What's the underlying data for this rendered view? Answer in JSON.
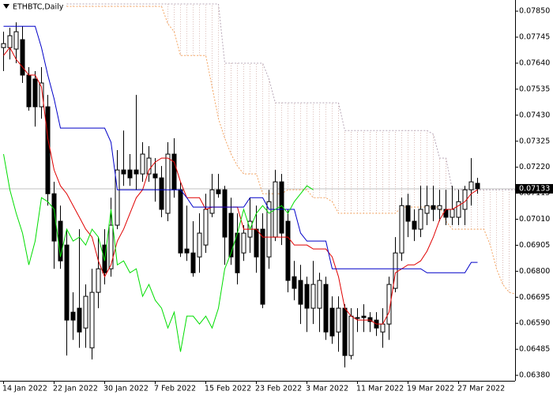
{
  "chart_data": {
    "type": "candlestick",
    "title": "ETHBTC,Daily",
    "categories": [
      "14 Jan 2022",
      null,
      null,
      null,
      null,
      null,
      null,
      null,
      "22 Jan 2022",
      null,
      null,
      null,
      null,
      null,
      null,
      null,
      "30 Jan 2022",
      null,
      null,
      null,
      null,
      null,
      null,
      null,
      "7 Feb 2022",
      null,
      null,
      null,
      null,
      null,
      null,
      null,
      "15 Feb 2022",
      null,
      null,
      null,
      null,
      null,
      null,
      null,
      "23 Feb 2022",
      null,
      null,
      null,
      null,
      null,
      null,
      null,
      "3 Mar 2022",
      null,
      null,
      null,
      null,
      null,
      null,
      null,
      "11 Mar 2022",
      null,
      null,
      null,
      null,
      null,
      null,
      null,
      "19 Mar 2022",
      null,
      null,
      null,
      null,
      null,
      null,
      null,
      "27 Mar 2022",
      null,
      null,
      null,
      null,
      null,
      null,
      null,
      null,
      null
    ],
    "open": [
      0.07703,
      0.07703,
      0.07697,
      0.07735,
      0.07592,
      0.07576,
      0.07464,
      0.07464,
      0.07113,
      0.07002,
      0.06906,
      0.06635,
      0.06651,
      0.06571,
      0.06491,
      0.06715,
      0.06906,
      0.0681,
      0.06986,
      0.07209,
      0.07209,
      0.07209,
      0.07193,
      0.07193,
      0.07193,
      0.07177,
      0.07034,
      0.07273,
      0.07129,
      0.0689,
      0.06874,
      0.06858,
      0.06906,
      0.07034,
      0.07129,
      0.07129,
      0.07034,
      0.06954,
      0.06874,
      0.06938,
      0.0697,
      0.0697,
      0.06858,
      0.06938,
      0.07161,
      0.07002,
      0.06778,
      0.06763,
      0.06747,
      0.06651,
      0.06651,
      0.06747,
      0.06651,
      0.06555,
      0.06651,
      0.0646,
      0.06613,
      0.06619,
      0.06613,
      0.06603,
      0.06555,
      0.06587,
      0.06731,
      0.06874,
      0.07065,
      0.07002,
      0.0697,
      0.07034,
      0.07065,
      0.0705,
      0.0705,
      0.07018,
      0.07018,
      0.0705,
      0.07129,
      0.07155,
      null,
      null,
      null,
      null,
      null,
      null
    ],
    "high": [
      0.07767,
      0.07783,
      0.07805,
      0.07789,
      0.07624,
      0.07608,
      0.07624,
      0.07512,
      0.07161,
      0.07065,
      0.0697,
      0.06715,
      0.0697,
      0.06747,
      0.0681,
      0.06938,
      0.0697,
      0.07097,
      0.07289,
      0.07368,
      0.07273,
      0.07512,
      0.07321,
      0.07305,
      0.07257,
      0.07225,
      0.07321,
      0.07337,
      0.07161,
      0.07065,
      0.07002,
      0.07034,
      0.07113,
      0.07193,
      0.07193,
      0.07145,
      0.07097,
      0.07034,
      0.06986,
      0.07097,
      0.07065,
      0.07034,
      0.07129,
      0.07209,
      0.07193,
      0.0705,
      0.06842,
      0.06826,
      0.06778,
      0.06842,
      0.06794,
      0.06778,
      0.06699,
      0.06699,
      0.06667,
      0.06651,
      0.06651,
      0.06667,
      0.06635,
      0.06635,
      0.06651,
      0.06778,
      0.06938,
      0.07097,
      0.07113,
      0.0705,
      0.07145,
      0.07145,
      0.07145,
      0.07129,
      0.07129,
      0.07145,
      0.07129,
      0.07145,
      0.07257,
      0.07177,
      null,
      null,
      null,
      null,
      null,
      null
    ],
    "low": [
      0.07608,
      0.07655,
      0.0764,
      0.0756,
      0.07448,
      0.07384,
      0.07416,
      0.07065,
      0.0681,
      0.0681,
      0.0646,
      0.06523,
      0.06491,
      0.06491,
      0.06444,
      0.06651,
      0.06747,
      0.06778,
      0.0697,
      0.07145,
      0.07145,
      0.07129,
      0.07161,
      0.07161,
      0.07081,
      0.07018,
      0.07002,
      0.07097,
      0.06858,
      0.06842,
      0.06778,
      0.06794,
      0.06874,
      0.07018,
      0.07097,
      0.06826,
      0.06826,
      0.06747,
      0.06842,
      0.06874,
      0.06794,
      0.06651,
      0.0681,
      0.06922,
      0.06906,
      0.06715,
      0.06683,
      0.06587,
      0.06555,
      0.06587,
      0.06555,
      0.06523,
      0.06507,
      0.06475,
      0.06412,
      0.06444,
      0.06555,
      0.06555,
      0.06555,
      0.06539,
      0.06491,
      0.06523,
      0.06715,
      0.06842,
      0.06938,
      0.06922,
      0.06938,
      0.06986,
      0.07002,
      0.07002,
      0.06986,
      0.06986,
      0.06986,
      0.06986,
      0.07065,
      0.07113,
      null,
      null,
      null,
      null,
      null,
      null
    ],
    "close": [
      0.07719,
      0.07751,
      0.07767,
      0.07592,
      0.07464,
      0.07464,
      0.0756,
      0.07113,
      0.06922,
      0.06842,
      0.06603,
      0.06603,
      0.06555,
      0.06699,
      0.06715,
      0.0681,
      0.06794,
      0.06986,
      0.07209,
      0.07193,
      0.07177,
      0.07193,
      0.07273,
      0.07257,
      0.07177,
      0.0705,
      0.07273,
      0.07129,
      0.06874,
      0.06874,
      0.06794,
      0.06954,
      0.0705,
      0.07129,
      0.07113,
      0.06938,
      0.06858,
      0.06794,
      0.06954,
      0.07002,
      0.06858,
      0.06667,
      0.07081,
      0.07161,
      0.06954,
      0.06763,
      0.06731,
      0.06667,
      0.06651,
      0.06747,
      0.06763,
      0.06555,
      0.06539,
      0.06651,
      0.0646,
      0.06619,
      0.06613,
      0.06613,
      0.06597,
      0.06571,
      0.06587,
      0.06747,
      0.06874,
      0.07065,
      0.07002,
      0.0697,
      0.0705,
      0.07065,
      0.0705,
      0.07065,
      0.07018,
      0.0705,
      0.07081,
      0.07129,
      0.07161,
      0.07133,
      null,
      null,
      null,
      null,
      null,
      null
    ],
    "bull_color": "#ffffff",
    "bear_color": "#000000",
    "series": [
      {
        "color": "#e00000",
        "dash": false,
        "values": [
          0.07671,
          0.07703,
          0.07655,
          0.07624,
          0.07592,
          0.07592,
          0.07544,
          0.07337,
          0.07209,
          0.07145,
          0.07113,
          0.07065,
          0.07018,
          0.0697,
          0.06938,
          0.06842,
          0.06778,
          0.06826,
          0.06922,
          0.0697,
          0.07034,
          0.07097,
          0.07129,
          0.07209,
          0.07241,
          0.07257,
          0.07257,
          0.07241,
          0.07161,
          0.07097,
          0.07097,
          0.07097,
          0.0705,
          0.07059,
          0.07059,
          0.07059,
          0.07059,
          0.07059,
          0.0697,
          0.0697,
          0.0697,
          0.06938,
          0.06938,
          0.06938,
          0.06938,
          0.06938,
          0.06906,
          0.06906,
          0.06906,
          0.0689,
          0.0689,
          0.0689,
          0.06858,
          0.06778,
          0.06651,
          0.06619,
          0.06603,
          0.06603,
          0.06603,
          0.06587,
          0.06587,
          0.06635,
          0.06794,
          0.0681,
          0.06826,
          0.06826,
          0.06842,
          0.06881,
          0.06938,
          0.07008,
          0.0705,
          0.0705,
          0.07065,
          0.07081,
          0.07113,
          0.07129,
          null,
          null,
          null,
          null,
          null,
          null
        ]
      },
      {
        "color": "#0000c8",
        "dash": false,
        "values": [
          0.07789,
          0.07789,
          0.07789,
          0.07789,
          0.07789,
          0.07789,
          0.07703,
          0.07592,
          0.07496,
          0.07378,
          0.07378,
          0.07378,
          0.07378,
          0.07378,
          0.07378,
          0.07378,
          0.07378,
          0.07321,
          0.07129,
          0.07129,
          0.07129,
          0.07129,
          0.07129,
          0.07129,
          0.07129,
          0.07129,
          0.07129,
          0.07129,
          0.07129,
          0.07097,
          0.07059,
          0.07059,
          0.07059,
          0.07059,
          0.07059,
          0.07059,
          0.07059,
          0.07059,
          0.07059,
          0.07097,
          0.07097,
          0.07097,
          0.0705,
          0.0705,
          0.0705,
          0.0705,
          0.0705,
          0.06954,
          0.06922,
          0.06922,
          0.06922,
          0.06922,
          0.0681,
          0.0681,
          0.0681,
          0.0681,
          0.0681,
          0.0681,
          0.0681,
          0.0681,
          0.0681,
          0.0681,
          0.0681,
          0.0681,
          0.0681,
          0.0681,
          0.0681,
          0.06794,
          0.06794,
          0.06794,
          0.06794,
          0.06794,
          0.06794,
          0.06794,
          0.06836,
          0.06836,
          null,
          null,
          null,
          null,
          null,
          null
        ]
      },
      {
        "color": "#00dd00",
        "dash": false,
        "values": [
          0.07273,
          0.07129,
          0.07034,
          0.06954,
          0.06826,
          0.06922,
          0.07097,
          0.07081,
          0.0705,
          0.06858,
          0.0697,
          0.06922,
          0.06938,
          0.06906,
          0.0697,
          0.06938,
          0.06842,
          0.0705,
          0.06826,
          0.06842,
          0.06794,
          0.0681,
          0.06699,
          0.06747,
          0.06683,
          0.06651,
          0.06571,
          0.06635,
          0.06475,
          0.06619,
          0.06619,
          0.06587,
          0.06619,
          0.06571,
          0.06651,
          0.0681,
          0.06874,
          0.06954,
          0.0705,
          0.0697,
          0.07034,
          0.07065,
          0.07034,
          0.0705,
          0.07065,
          0.07034,
          0.07081,
          0.07113,
          0.07145,
          0.07129,
          null,
          null,
          null,
          null,
          null,
          null,
          null,
          null,
          null,
          null,
          null,
          null,
          null,
          null,
          null,
          null,
          null,
          null,
          null,
          null,
          null,
          null,
          null,
          null,
          null,
          null,
          null,
          null,
          null,
          null,
          null,
          null
        ]
      },
      {
        "color": "#f4a460",
        "dash": true,
        "values": [
          null,
          null,
          null,
          null,
          null,
          null,
          null,
          null,
          null,
          null,
          0.07869,
          0.07869,
          0.07869,
          0.07869,
          0.07869,
          0.07869,
          0.07869,
          0.07869,
          0.07869,
          0.07869,
          0.07869,
          0.07869,
          0.07869,
          0.07869,
          0.07869,
          0.07869,
          0.07799,
          0.07767,
          0.07671,
          0.07671,
          0.07671,
          0.07671,
          0.07671,
          0.07544,
          0.07416,
          0.07337,
          0.07273,
          0.07225,
          0.07193,
          0.07193,
          0.07193,
          0.07113,
          0.07113,
          0.07113,
          0.07113,
          0.07129,
          0.07129,
          0.07129,
          0.07129,
          0.07097,
          0.07097,
          0.07097,
          0.07081,
          0.07034,
          0.07034,
          0.07034,
          0.07034,
          0.07034,
          0.07034,
          0.07034,
          0.07034,
          0.07034,
          0.07034,
          0.07059,
          0.07059,
          0.07059,
          0.07059,
          0.07059,
          0.07059,
          0.07059,
          0.07002,
          0.0697,
          0.0697,
          0.0697,
          0.0697,
          0.0697,
          0.0697,
          0.06906,
          0.0681,
          0.06747,
          0.06715,
          0.06708
        ]
      },
      {
        "color": "#b8a8b8",
        "dash": true,
        "values": [
          null,
          null,
          null,
          null,
          null,
          null,
          null,
          null,
          null,
          null,
          0.07879,
          0.07879,
          0.07879,
          0.07879,
          0.07879,
          0.07879,
          0.07879,
          0.07879,
          0.07879,
          0.07879,
          0.07879,
          0.07879,
          0.07879,
          0.07879,
          0.07879,
          0.07879,
          0.07879,
          0.07879,
          0.07879,
          0.07879,
          0.07879,
          0.07879,
          0.07879,
          0.07879,
          0.07879,
          0.0764,
          0.0764,
          0.0764,
          0.0764,
          0.0764,
          0.0764,
          0.0764,
          0.07576,
          0.0748,
          0.0748,
          0.0748,
          0.0748,
          0.0748,
          0.0748,
          0.0748,
          0.0748,
          0.0748,
          0.0748,
          0.0748,
          0.07368,
          0.07368,
          0.07368,
          0.07368,
          0.07368,
          0.07368,
          0.07368,
          0.07368,
          0.07368,
          0.07368,
          0.07368,
          0.07368,
          0.07368,
          0.07368,
          0.07353,
          0.07257,
          0.07257,
          0.07129,
          0.07129,
          0.07129,
          0.07129,
          0.07129,
          0.07129,
          0.07129,
          0.07129,
          0.07129,
          0.07129,
          0.07129
        ]
      }
    ],
    "cloud_color": "#d9b9b4",
    "ylim": [
      0.06358,
      0.07895
    ],
    "yticks": [
      {
        "value": 0.0785,
        "label": "0.07850"
      },
      {
        "value": 0.07745,
        "label": "0.07745"
      },
      {
        "value": 0.0764,
        "label": "0.07640"
      },
      {
        "value": 0.07535,
        "label": "0.07535"
      },
      {
        "value": 0.0743,
        "label": "0.07430"
      },
      {
        "value": 0.07325,
        "label": "0.07325"
      },
      {
        "value": 0.0722,
        "label": "0.07220"
      },
      {
        "value": 0.07115,
        "label": "0.07115"
      },
      {
        "value": 0.0701,
        "label": "0.07010"
      },
      {
        "value": 0.06905,
        "label": "0.06905"
      },
      {
        "value": 0.068,
        "label": "0.06800"
      },
      {
        "value": 0.06695,
        "label": "0.06695"
      },
      {
        "value": 0.0659,
        "label": "0.06590"
      },
      {
        "value": 0.06485,
        "label": "0.06485"
      },
      {
        "value": 0.0638,
        "label": "0.06380"
      }
    ],
    "current_price": {
      "value": 0.07133,
      "label": "0.07133"
    },
    "grid": false
  }
}
